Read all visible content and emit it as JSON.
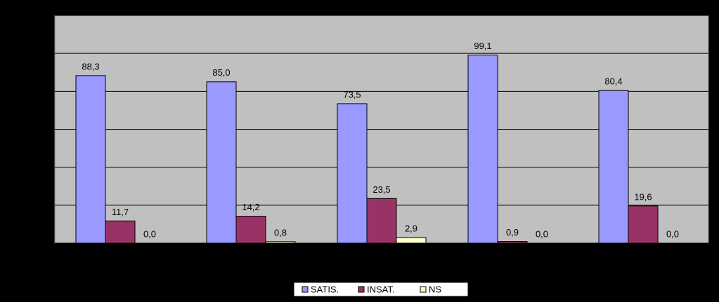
{
  "chart_data": {
    "type": "bar",
    "categories": [
      null,
      null,
      null,
      null,
      null
    ],
    "series": [
      {
        "name": "SATIS.",
        "color": "#9999ff",
        "values": [
          88.3,
          85.0,
          73.5,
          99.1,
          80.4
        ],
        "value_labels": [
          "88,3",
          "85,0",
          "73,5",
          "99,1",
          "80,4"
        ]
      },
      {
        "name": "INSAT.",
        "color": "#993366",
        "values": [
          11.7,
          14.2,
          23.5,
          0.9,
          19.6
        ],
        "value_labels": [
          "11,7",
          "14,2",
          "23,5",
          "0,9",
          "19,6"
        ]
      },
      {
        "name": "NS",
        "color": "#ffffcc",
        "values": [
          0.0,
          0.8,
          2.9,
          0.0,
          0.0
        ],
        "value_labels": [
          "0,0",
          "0,8",
          "2,9",
          "0,0",
          "0,0"
        ]
      }
    ],
    "ylim": [
      0,
      120
    ],
    "yticks": [
      0,
      20,
      40,
      60,
      80,
      100,
      120
    ],
    "grid": true
  }
}
